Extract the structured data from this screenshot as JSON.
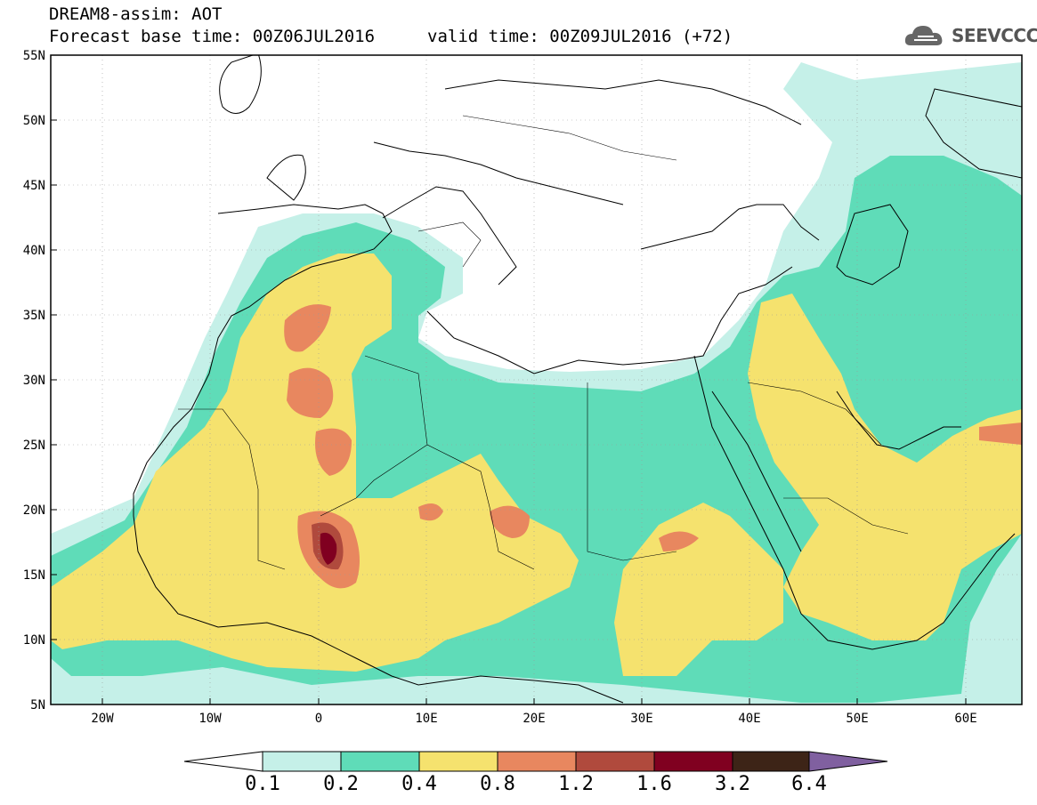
{
  "header": {
    "title": "DREAM8-assim: AOT",
    "base_time": "Forecast base time: 00Z06JUL2016",
    "valid_time": "valid time: 00Z09JUL2016 (+72)"
  },
  "logo": {
    "text": "SEEVCCC",
    "icon": "cloud-icon"
  },
  "map": {
    "lat_labels": [
      "55N",
      "50N",
      "45N",
      "40N",
      "35N",
      "30N",
      "25N",
      "20N",
      "15N",
      "10N",
      "5N"
    ],
    "lon_labels": [
      "20W",
      "10W",
      "0",
      "10E",
      "20E",
      "30E",
      "40E",
      "50E",
      "60E"
    ],
    "lon_range": [
      -25,
      65
    ],
    "lat_range": [
      5,
      55
    ],
    "grid": true
  },
  "colorbar": {
    "labels": [
      "0.1",
      "0.2",
      "0.4",
      "0.8",
      "1.2",
      "1.6",
      "3.2",
      "6.4"
    ],
    "colors": [
      "#c5f0e8",
      "#5fdcb8",
      "#f5e26e",
      "#e8875f",
      "#b04a3d",
      "#800020",
      "#3d2417",
      "#8060a0"
    ]
  },
  "palette": {
    "low": "#c5f0e8",
    "mid": "#5fdcb8",
    "yellow": "#f5e26e",
    "orange": "#e8875f",
    "red": "#b04a3d",
    "dark": "#800020"
  }
}
